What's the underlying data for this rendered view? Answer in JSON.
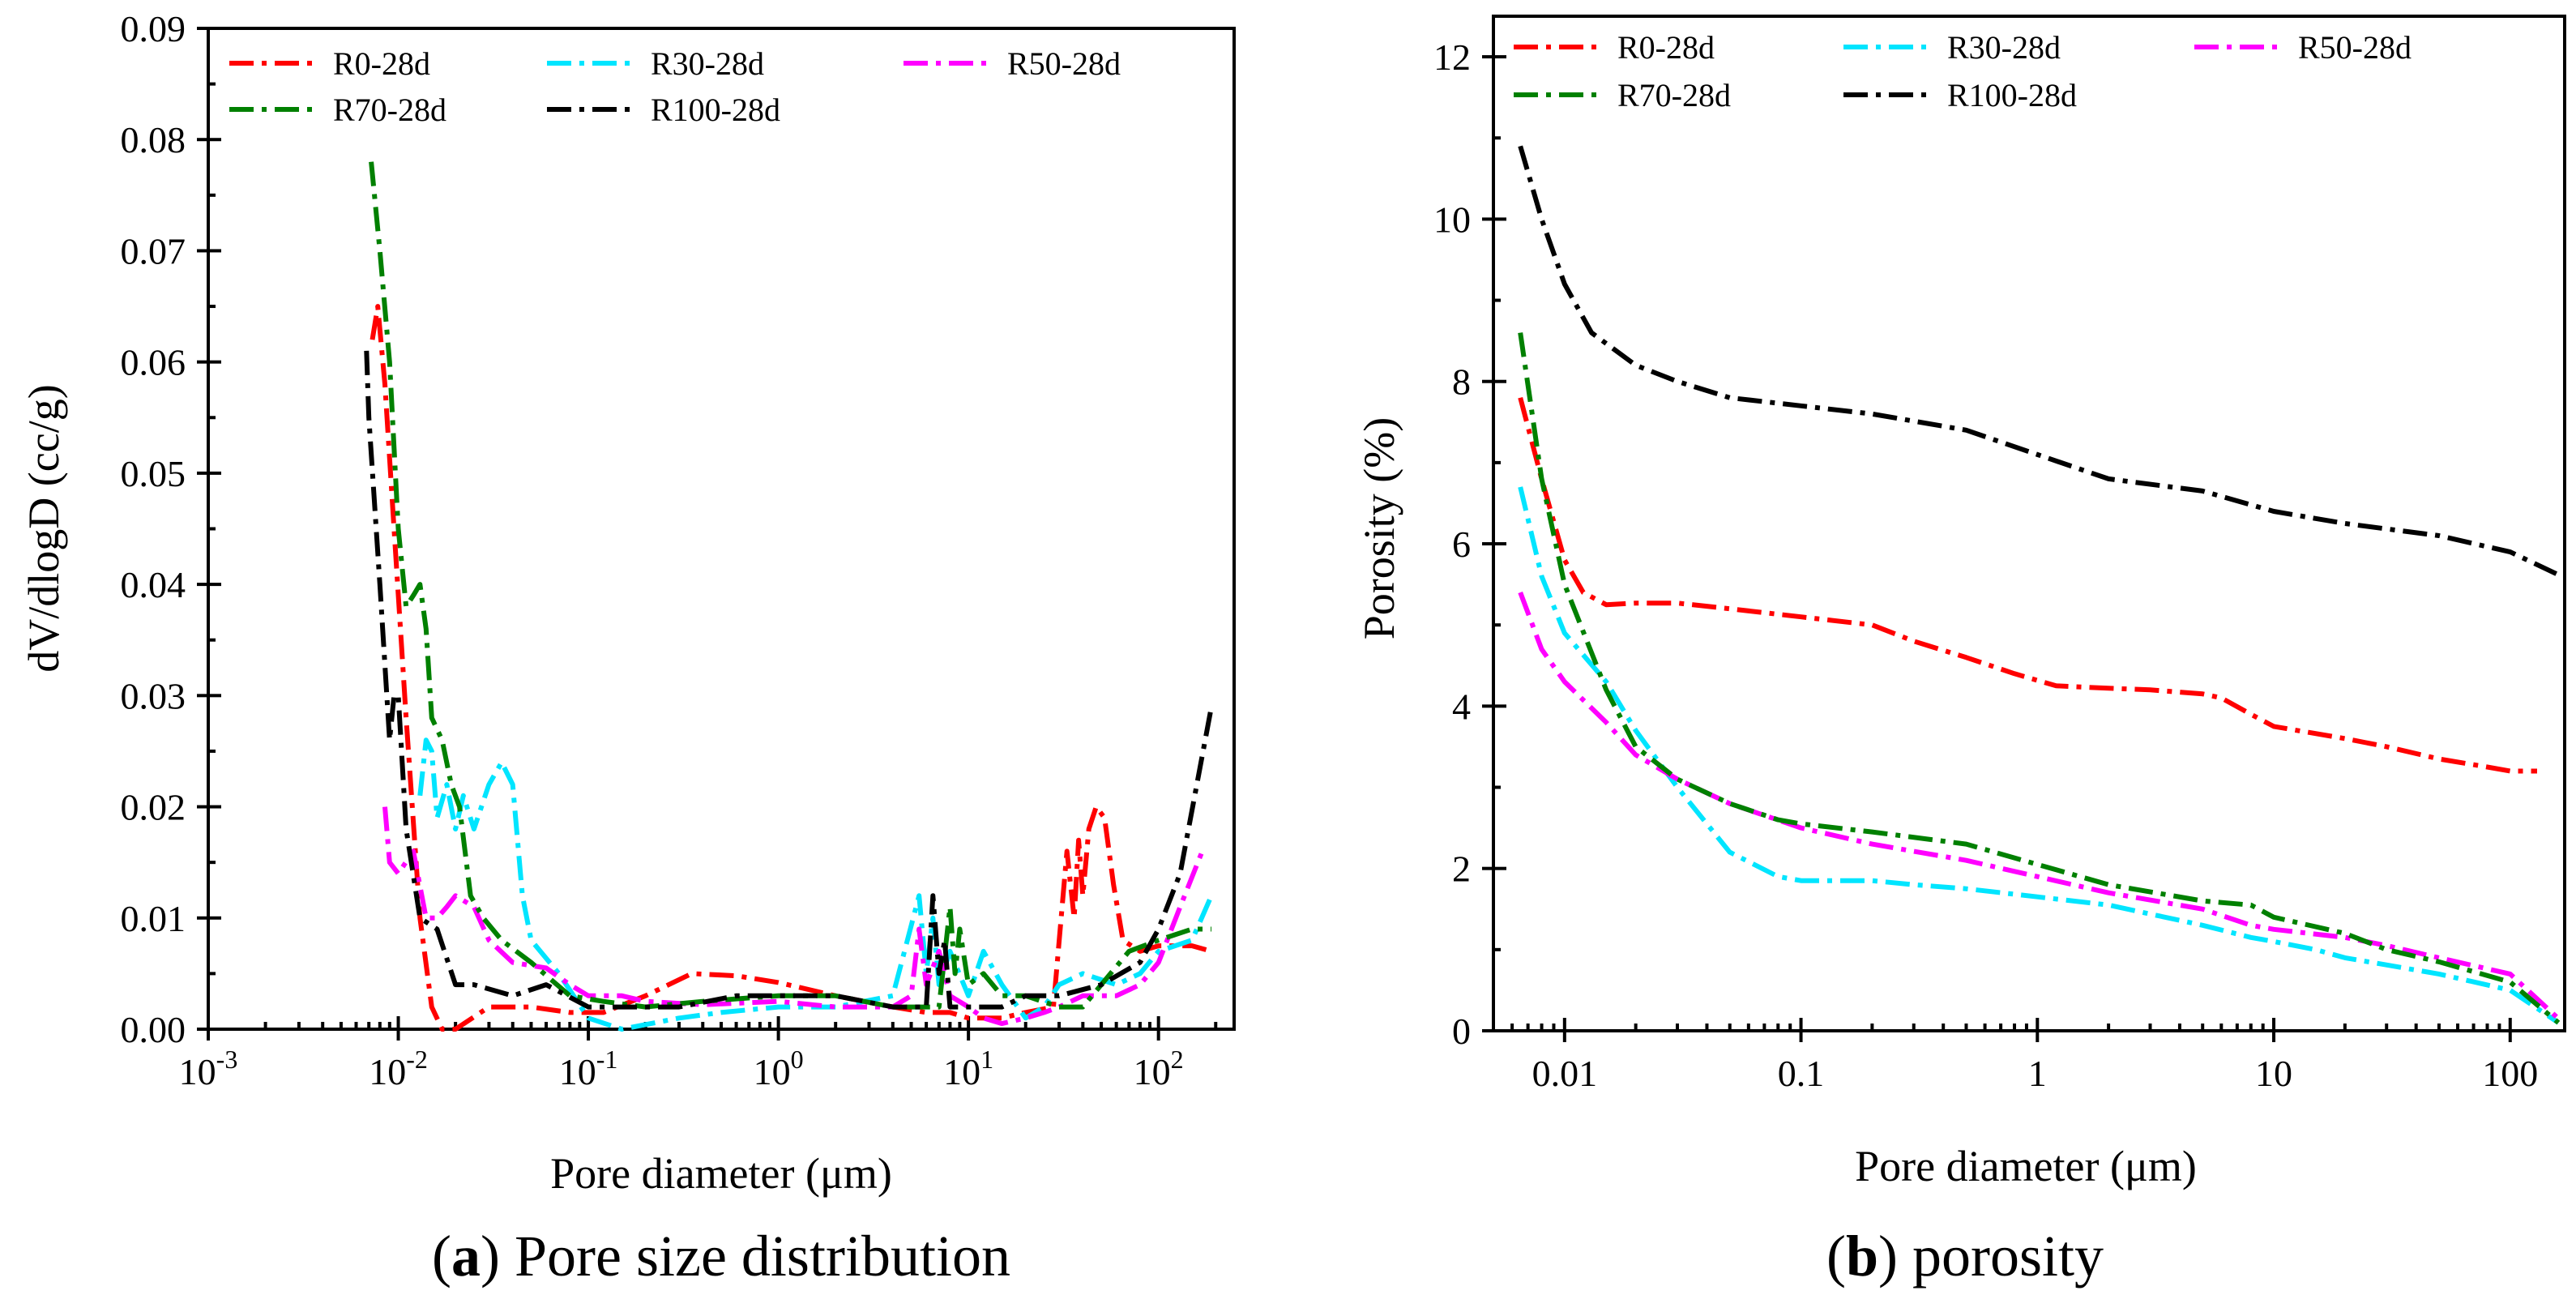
{
  "chart_data": [
    {
      "type": "line",
      "title": "",
      "caption_letter": "a",
      "caption_text": "Pore size distribution",
      "xlabel": "Pore diameter (μm)",
      "ylabel": "dV/dlogD (cc/g)",
      "xscale": "log",
      "xlim": [
        0.001,
        250
      ],
      "ylim": [
        0,
        0.09
      ],
      "yticks": [
        "0.00",
        "0.01",
        "0.02",
        "0.03",
        "0.04",
        "0.05",
        "0.06",
        "0.07",
        "0.08",
        "0.09"
      ],
      "xticks": [
        {
          "base": "10",
          "exp": "-3",
          "value": 0.001
        },
        {
          "base": "10",
          "exp": "-2",
          "value": 0.01
        },
        {
          "base": "10",
          "exp": "-1",
          "value": 0.1
        },
        {
          "base": "10",
          "exp": "0",
          "value": 1
        },
        {
          "base": "10",
          "exp": "1",
          "value": 10
        },
        {
          "base": "10",
          "exp": "2",
          "value": 100
        }
      ],
      "legend_position": "top",
      "grid": false,
      "series": [
        {
          "name": "R0-28d",
          "color": "#ff0000",
          "x": [
            0.0073,
            0.0078,
            0.0085,
            0.0095,
            0.011,
            0.013,
            0.015,
            0.017,
            0.02,
            0.03,
            0.05,
            0.08,
            0.12,
            0.2,
            0.35,
            0.6,
            1,
            2,
            4,
            6,
            8,
            10,
            15,
            20,
            28,
            33,
            36,
            38,
            40,
            43,
            47,
            52,
            58,
            65,
            80,
            100,
            150,
            190
          ],
          "y": [
            0.062,
            0.065,
            0.058,
            0.045,
            0.028,
            0.01,
            0.002,
            0.0,
            0.0,
            0.002,
            0.002,
            0.0015,
            0.0015,
            0.003,
            0.005,
            0.0048,
            0.0042,
            0.003,
            0.002,
            0.0015,
            0.0015,
            0.001,
            0.001,
            0.0015,
            0.002,
            0.016,
            0.01,
            0.017,
            0.012,
            0.018,
            0.02,
            0.019,
            0.013,
            0.008,
            0.007,
            0.0075,
            0.0075,
            0.007
          ]
        },
        {
          "name": "R30-28d",
          "color": "#00e5ff",
          "x": [
            0.013,
            0.014,
            0.015,
            0.016,
            0.018,
            0.02,
            0.022,
            0.025,
            0.03,
            0.035,
            0.04,
            0.045,
            0.05,
            0.07,
            0.1,
            0.15,
            0.3,
            0.5,
            1,
            2,
            4,
            5.5,
            6,
            6.5,
            7,
            8,
            10,
            12,
            15,
            20,
            25,
            30,
            40,
            60,
            80,
            100,
            150,
            190
          ],
          "y": [
            0.021,
            0.026,
            0.025,
            0.019,
            0.022,
            0.018,
            0.021,
            0.018,
            0.022,
            0.024,
            0.022,
            0.012,
            0.008,
            0.005,
            0.001,
            0.0,
            0.001,
            0.0015,
            0.002,
            0.002,
            0.003,
            0.012,
            0.005,
            0.01,
            0.004,
            0.007,
            0.003,
            0.007,
            0.004,
            0.001,
            0.002,
            0.004,
            0.005,
            0.004,
            0.005,
            0.007,
            0.008,
            0.012
          ]
        },
        {
          "name": "R50-28d",
          "color": "#ff00ff",
          "x": [
            0.0085,
            0.009,
            0.01,
            0.012,
            0.014,
            0.016,
            0.018,
            0.02,
            0.025,
            0.03,
            0.04,
            0.06,
            0.08,
            0.1,
            0.15,
            0.2,
            0.4,
            1,
            2,
            4,
            5,
            5.5,
            6,
            7,
            8,
            10,
            12,
            15,
            20,
            25,
            30,
            40,
            60,
            80,
            100,
            130,
            170
          ],
          "y": [
            0.02,
            0.015,
            0.014,
            0.016,
            0.01,
            0.01,
            0.011,
            0.012,
            0.011,
            0.008,
            0.006,
            0.0055,
            0.004,
            0.003,
            0.003,
            0.0025,
            0.0022,
            0.0025,
            0.002,
            0.002,
            0.003,
            0.009,
            0.004,
            0.007,
            0.003,
            0.002,
            0.001,
            0.0005,
            0.001,
            0.0015,
            0.002,
            0.003,
            0.003,
            0.004,
            0.006,
            0.011,
            0.016
          ]
        },
        {
          "name": "R70-28d",
          "color": "#008000",
          "x": [
            0.0072,
            0.008,
            0.009,
            0.01,
            0.011,
            0.012,
            0.013,
            0.014,
            0.015,
            0.017,
            0.019,
            0.021,
            0.024,
            0.028,
            0.035,
            0.05,
            0.08,
            0.12,
            0.2,
            0.4,
            1,
            2,
            4,
            6,
            7,
            8,
            8.5,
            9,
            10,
            12,
            15,
            20,
            30,
            40,
            50,
            70,
            100,
            150,
            190
          ],
          "y": [
            0.078,
            0.07,
            0.06,
            0.045,
            0.038,
            0.039,
            0.04,
            0.036,
            0.028,
            0.026,
            0.022,
            0.02,
            0.012,
            0.01,
            0.008,
            0.006,
            0.003,
            0.0025,
            0.002,
            0.0025,
            0.003,
            0.003,
            0.002,
            0.002,
            0.002,
            0.011,
            0.005,
            0.009,
            0.004,
            0.005,
            0.003,
            0.003,
            0.002,
            0.002,
            0.004,
            0.007,
            0.008,
            0.009,
            0.009
          ]
        },
        {
          "name": "R100-28d",
          "color": "#000000",
          "x": [
            0.0068,
            0.007,
            0.008,
            0.009,
            0.0095,
            0.01,
            0.011,
            0.013,
            0.016,
            0.02,
            0.025,
            0.04,
            0.06,
            0.1,
            0.15,
            0.3,
            0.6,
            1,
            2,
            4,
            6,
            6.5,
            7,
            7.5,
            8,
            10,
            15,
            20,
            30,
            50,
            80,
            100,
            130,
            190
          ],
          "y": [
            0.061,
            0.055,
            0.04,
            0.026,
            0.03,
            0.03,
            0.018,
            0.01,
            0.009,
            0.004,
            0.004,
            0.003,
            0.004,
            0.002,
            0.002,
            0.002,
            0.003,
            0.003,
            0.003,
            0.002,
            0.002,
            0.012,
            0.005,
            0.008,
            0.002,
            0.002,
            0.002,
            0.003,
            0.003,
            0.004,
            0.006,
            0.009,
            0.014,
            0.029
          ]
        }
      ]
    },
    {
      "type": "line",
      "title": "",
      "caption_letter": "b",
      "caption_text": "porosity",
      "xlabel": "Pore diameter (μm)",
      "ylabel": "Porosity (%)",
      "xscale": "log",
      "xlim": [
        0.005,
        170
      ],
      "ylim": [
        0,
        12.5
      ],
      "yticks": [
        "0",
        "2",
        "4",
        "6",
        "8",
        "10",
        "12"
      ],
      "xticks": [
        {
          "label": "0.01",
          "value": 0.01
        },
        {
          "label": "0.1",
          "value": 0.1
        },
        {
          "label": "1",
          "value": 1
        },
        {
          "label": "10",
          "value": 10
        },
        {
          "label": "100",
          "value": 100
        }
      ],
      "legend_position": "top",
      "grid": false,
      "series": [
        {
          "name": "R0-28d",
          "color": "#ff0000",
          "x": [
            0.0065,
            0.008,
            0.01,
            0.012,
            0.015,
            0.02,
            0.03,
            0.05,
            0.1,
            0.2,
            0.3,
            0.5,
            0.8,
            1.2,
            2,
            3,
            5,
            6,
            8,
            10,
            20,
            30,
            50,
            80,
            100,
            130
          ],
          "y": [
            7.8,
            6.8,
            5.8,
            5.4,
            5.25,
            5.27,
            5.27,
            5.2,
            5.1,
            5.0,
            4.8,
            4.6,
            4.4,
            4.25,
            4.22,
            4.2,
            4.15,
            4.1,
            3.9,
            3.75,
            3.6,
            3.5,
            3.35,
            3.25,
            3.2,
            3.2
          ]
        },
        {
          "name": "R30-28d",
          "color": "#00e5ff",
          "x": [
            0.0065,
            0.008,
            0.01,
            0.015,
            0.02,
            0.03,
            0.05,
            0.08,
            0.1,
            0.2,
            0.3,
            0.5,
            1,
            2,
            5,
            8,
            10,
            15,
            20,
            50,
            100,
            160
          ],
          "y": [
            6.7,
            5.6,
            4.9,
            4.3,
            3.7,
            3.0,
            2.2,
            1.9,
            1.85,
            1.85,
            1.8,
            1.75,
            1.65,
            1.55,
            1.3,
            1.15,
            1.1,
            1.0,
            0.9,
            0.7,
            0.5,
            0.1
          ]
        },
        {
          "name": "R50-28d",
          "color": "#ff00ff",
          "x": [
            0.0065,
            0.008,
            0.01,
            0.015,
            0.02,
            0.03,
            0.05,
            0.1,
            0.2,
            0.5,
            1,
            2,
            5,
            8,
            10,
            20,
            30,
            50,
            100,
            160
          ],
          "y": [
            5.4,
            4.7,
            4.3,
            3.8,
            3.4,
            3.1,
            2.8,
            2.5,
            2.3,
            2.1,
            1.9,
            1.7,
            1.5,
            1.3,
            1.25,
            1.15,
            1.05,
            0.9,
            0.7,
            0.15
          ]
        },
        {
          "name": "R70-28d",
          "color": "#008000",
          "x": [
            0.0065,
            0.008,
            0.01,
            0.015,
            0.02,
            0.03,
            0.05,
            0.08,
            0.1,
            0.2,
            0.5,
            1,
            2,
            5,
            8,
            10,
            20,
            30,
            50,
            100,
            160
          ],
          "y": [
            8.6,
            6.8,
            5.5,
            4.2,
            3.5,
            3.1,
            2.8,
            2.6,
            2.55,
            2.45,
            2.3,
            2.05,
            1.8,
            1.6,
            1.55,
            1.4,
            1.2,
            1.0,
            0.85,
            0.6,
            0.1
          ]
        },
        {
          "name": "R100-28d",
          "color": "#000000",
          "x": [
            0.0065,
            0.008,
            0.01,
            0.013,
            0.02,
            0.03,
            0.05,
            0.1,
            0.2,
            0.5,
            1,
            2,
            5,
            10,
            20,
            50,
            100,
            165
          ],
          "y": [
            10.9,
            10.0,
            9.2,
            8.6,
            8.2,
            8.0,
            7.8,
            7.7,
            7.6,
            7.4,
            7.1,
            6.8,
            6.65,
            6.4,
            6.25,
            6.1,
            5.9,
            5.6
          ]
        }
      ]
    }
  ]
}
